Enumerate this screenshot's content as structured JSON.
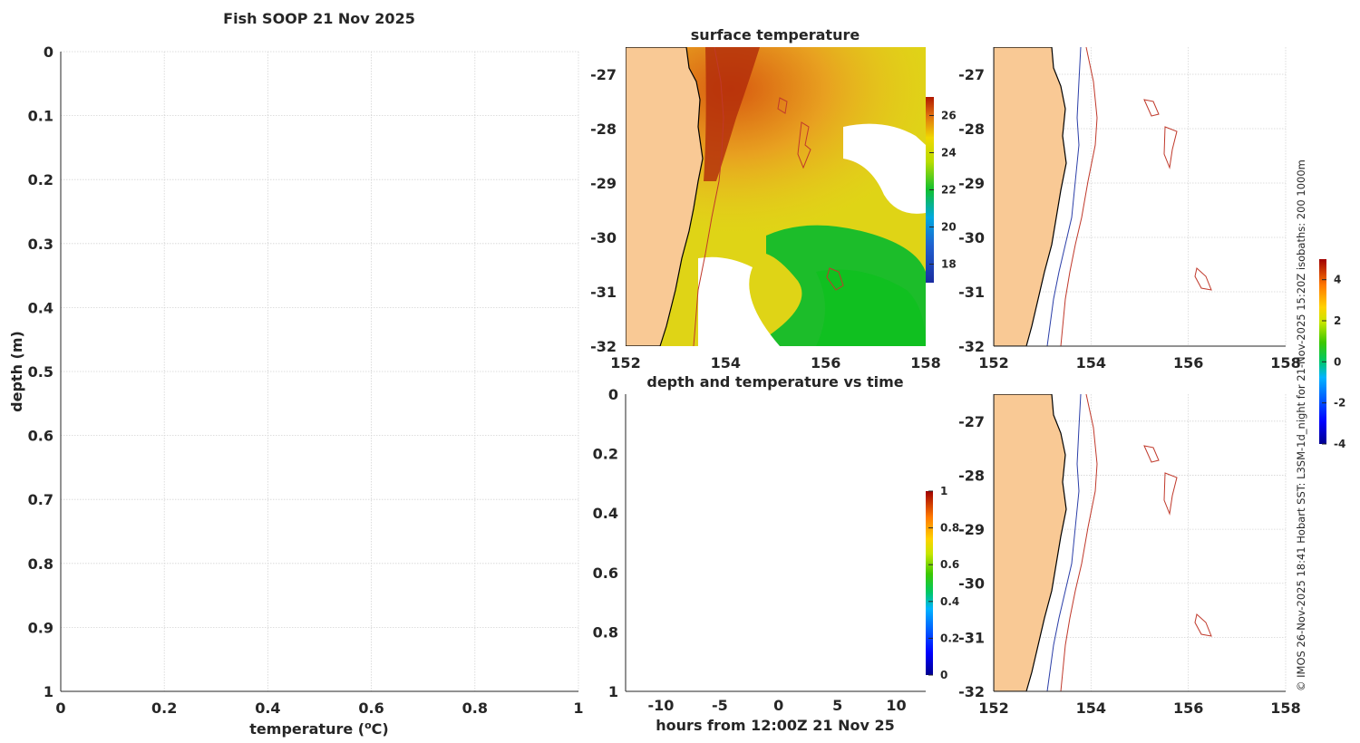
{
  "title": "Fish SOOP 21 Nov 2025",
  "credit": "© IMOS 26-Nov-2025 18:41 Hobart SST: L3SM-1d_night for 21-Nov-2025 15:20Z isobaths: 200  1000m",
  "colors": {
    "land": "#f9c995",
    "isobath_200": "#c0392b",
    "isobath_1000": "#2b3ea8",
    "grid": "#d4d4d4"
  },
  "chart_data": [
    {
      "id": "profile",
      "type": "line",
      "title": "",
      "xlabel": "temperature (",
      "xlabel_sup": "o",
      "xlabel_tail": "C)",
      "ylabel": "depth (m)",
      "xlim": [
        0,
        1
      ],
      "ylim": [
        0,
        1
      ],
      "y_reversed": true,
      "xticks": [
        "0",
        "0.2",
        "0.4",
        "0.6",
        "0.8",
        "1"
      ],
      "yticks": [
        "0",
        "0.1",
        "0.2",
        "0.3",
        "0.4",
        "0.5",
        "0.6",
        "0.7",
        "0.8",
        "0.9",
        "1"
      ],
      "grid": true,
      "series": []
    },
    {
      "id": "sst",
      "type": "heatmap",
      "title": "surface temperature",
      "xlim": [
        152,
        158
      ],
      "ylim": [
        -32,
        -26.5
      ],
      "xticks": [
        "152",
        "154",
        "156",
        "158"
      ],
      "yticks": [
        "-27",
        "-28",
        "-29",
        "-30",
        "-31",
        "-32"
      ],
      "colorbar": {
        "ticks": [
          "26",
          "24",
          "22",
          "20",
          "18"
        ],
        "range": [
          17,
          27
        ]
      }
    },
    {
      "id": "timeseries",
      "type": "scatter",
      "title": "depth and temperature vs time",
      "xlabel": "hours from 12:00Z 21 Nov 25",
      "xlim": [
        -13,
        12.5
      ],
      "ylim": [
        0,
        1
      ],
      "y_reversed": true,
      "xticks": [
        "-10",
        "-5",
        "0",
        "5",
        "10"
      ],
      "yticks": [
        "0",
        "0.2",
        "0.4",
        "0.6",
        "0.8",
        "1"
      ],
      "colorbar": {
        "ticks": [
          "1",
          "0.8",
          "0.6",
          "0.4",
          "0.2",
          "0"
        ],
        "range": [
          0,
          1
        ]
      },
      "series": []
    },
    {
      "id": "anomaly",
      "type": "heatmap",
      "title": "",
      "xlim": [
        152,
        158
      ],
      "ylim": [
        -32,
        -26.5
      ],
      "xticks": [
        "152",
        "154",
        "156",
        "158"
      ],
      "yticks": [
        "-27",
        "-28",
        "-29",
        "-30",
        "-31",
        "-32"
      ],
      "colorbar": {
        "ticks": [
          "4",
          "2",
          "0",
          "-2",
          "-4"
        ],
        "range": [
          -4,
          5
        ]
      }
    },
    {
      "id": "track",
      "type": "scatter",
      "title": "",
      "xlim": [
        152,
        158
      ],
      "ylim": [
        -32,
        -26.5
      ],
      "xticks": [
        "152",
        "154",
        "156",
        "158"
      ],
      "yticks": [
        "-27",
        "-28",
        "-29",
        "-30",
        "-31",
        "-32"
      ],
      "series": []
    }
  ]
}
